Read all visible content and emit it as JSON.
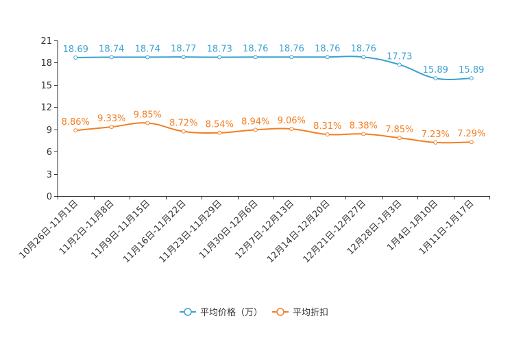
{
  "chart_data": {
    "type": "line",
    "title": "",
    "xlabel": "",
    "ylabel": "",
    "ylim": [
      0,
      21
    ],
    "yticks": [
      0,
      3,
      6,
      9,
      12,
      15,
      18,
      21
    ],
    "grid": false,
    "legend_position": "bottom-center",
    "categories": [
      "10月26日-11月1日",
      "11月2日-11月8日",
      "11月9日-11月15日",
      "11月16日-11月22日",
      "11月23日-11月29日",
      "11月30日-12月6日",
      "12月7日-12月13日",
      "12月14日-12月20日",
      "12月21日-12月27日",
      "12月28日-1月3日",
      "1月4日-1月10日",
      "1月11日-1月17日"
    ],
    "series": [
      {
        "name": "平均价格（万）",
        "color": "#3ba1d1",
        "values": [
          18.69,
          18.74,
          18.74,
          18.77,
          18.73,
          18.76,
          18.76,
          18.76,
          18.76,
          17.73,
          15.89,
          15.89
        ],
        "labels": [
          "18.69",
          "18.74",
          "18.74",
          "18.77",
          "18.73",
          "18.76",
          "18.76",
          "18.76",
          "18.76",
          "17.73",
          "15.89",
          "15.89"
        ]
      },
      {
        "name": "平均折扣",
        "color": "#f47d20",
        "values": [
          8.86,
          9.33,
          9.85,
          8.72,
          8.54,
          8.94,
          9.06,
          8.31,
          8.38,
          7.85,
          7.23,
          7.29
        ],
        "labels": [
          "8.86%",
          "9.33%",
          "9.85%",
          "8.72%",
          "8.54%",
          "8.94%",
          "9.06%",
          "8.31%",
          "8.38%",
          "7.85%",
          "7.23%",
          "7.29%"
        ]
      }
    ]
  }
}
